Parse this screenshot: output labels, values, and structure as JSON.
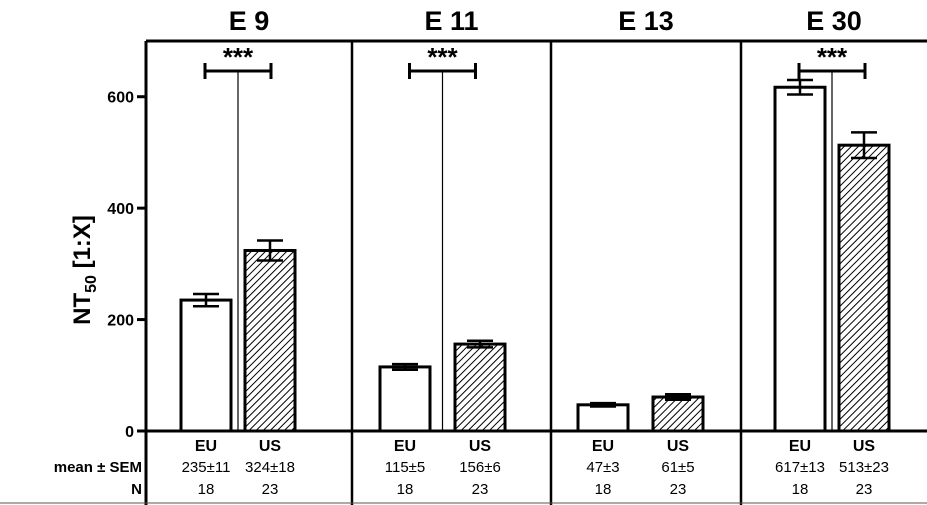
{
  "chart_data": {
    "type": "bar",
    "ylabel_main": "NT",
    "ylabel_sub": "50",
    "ylabel_rest": " [1:X]",
    "ylim": [
      0,
      700
    ],
    "yticks": [
      0,
      200,
      400,
      600
    ],
    "row_labels": {
      "mean": "mean ± SEM",
      "n": "N"
    },
    "panels": [
      {
        "title": "E 9",
        "significance": "***",
        "bars": [
          {
            "category": "EU",
            "value": 235,
            "error": 11,
            "stat": "235±11",
            "n": "18",
            "pattern": "none"
          },
          {
            "category": "US",
            "value": 324,
            "error": 18,
            "stat": "324±18",
            "n": "23",
            "pattern": "hatched"
          }
        ]
      },
      {
        "title": "E 11",
        "significance": "***",
        "bars": [
          {
            "category": "EU",
            "value": 115,
            "error": 5,
            "stat": "115±5",
            "n": "18",
            "pattern": "none"
          },
          {
            "category": "US",
            "value": 156,
            "error": 6,
            "stat": "156±6",
            "n": "23",
            "pattern": "hatched"
          }
        ]
      },
      {
        "title": "E 13",
        "significance": "",
        "bars": [
          {
            "category": "EU",
            "value": 47,
            "error": 3,
            "stat": "47±3",
            "n": "18",
            "pattern": "none"
          },
          {
            "category": "US",
            "value": 61,
            "error": 5,
            "stat": "61±5",
            "n": "23",
            "pattern": "hatched"
          }
        ]
      },
      {
        "title": "E 30",
        "significance": "***",
        "bars": [
          {
            "category": "EU",
            "value": 617,
            "error": 13,
            "stat": "617±13",
            "n": "18",
            "pattern": "none"
          },
          {
            "category": "US",
            "value": 513,
            "error": 23,
            "stat": "513±23",
            "n": "23",
            "pattern": "hatched"
          }
        ]
      }
    ]
  }
}
